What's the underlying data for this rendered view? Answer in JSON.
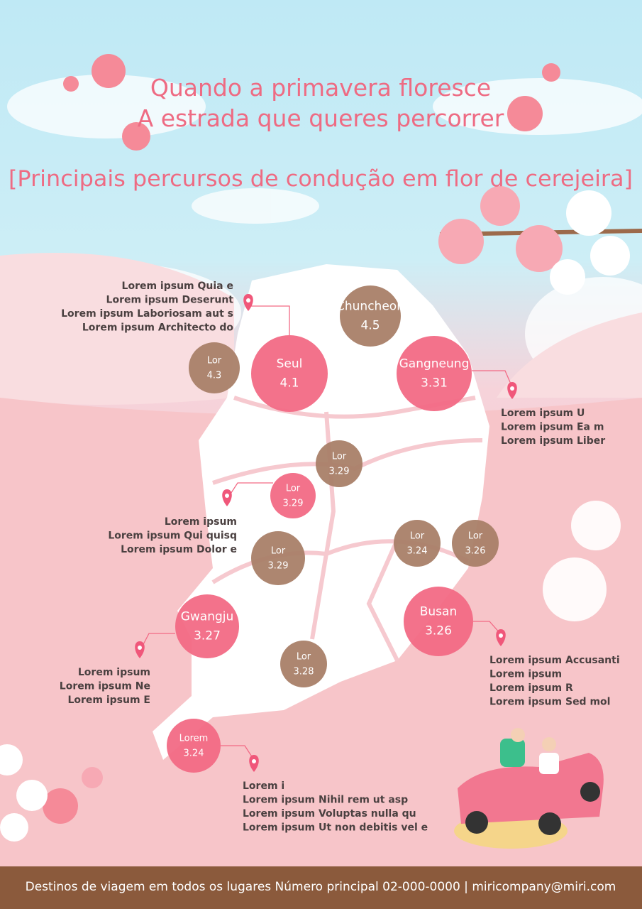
{
  "header": {
    "title_lines": [
      "Quando a primavera floresce",
      "A estrada que queres percorrer"
    ],
    "subtitle": "[Principais percursos de condução em flor de cerejeira]"
  },
  "bubbles": [
    {
      "label": "Chuncheon",
      "value": 4.5
    },
    {
      "label": "Lor",
      "value": 4.3
    },
    {
      "label": "Seul",
      "value": 4.1
    },
    {
      "label": "Gangneung",
      "value": 3.31
    },
    {
      "label": "Lor",
      "value": 3.29
    },
    {
      "label": "Lor",
      "value": 3.29
    },
    {
      "label": "Lor",
      "value": 3.29
    },
    {
      "label": "Lor",
      "value": 3.24
    },
    {
      "label": "Lor",
      "value": 3.26
    },
    {
      "label": "Busan",
      "value": 3.26
    },
    {
      "label": "Gwangju",
      "value": 3.27
    },
    {
      "label": "Lor",
      "value": 3.28
    },
    {
      "label": "Lorem",
      "value": 3.24
    }
  ],
  "callouts": [
    {
      "lines": [
        "Lorem ipsum Quia e",
        "Lorem ipsum Deserunt",
        "Lorem ipsum Laboriosam aut s",
        "Lorem ipsum Architecto do"
      ]
    },
    {
      "lines": [
        "Lorem ipsum U",
        "Lorem ipsum Ea m",
        "Lorem ipsum Liber"
      ]
    },
    {
      "lines": [
        "Lorem ipsum",
        "Lorem ipsum Qui quisq",
        "Lorem ipsum Dolor e"
      ]
    },
    {
      "lines": [
        "Lorem ipsum",
        "Lorem ipsum Ne",
        "Lorem ipsum E"
      ]
    },
    {
      "lines": [
        "Lorem ipsum Accusanti",
        "Lorem ipsum",
        "Lorem ipsum R",
        "Lorem ipsum Sed mol"
      ]
    },
    {
      "lines": [
        "Lorem i",
        "Lorem ipsum Nihil rem ut asp",
        "Lorem ipsum Voluptas nulla qu",
        "Lorem ipsum Ut non debitis vel e"
      ]
    }
  ],
  "footer": {
    "text": "Destinos de viagem em todos os lugares Número principal 02-000-0000  |  miricompany@miri.com"
  }
}
